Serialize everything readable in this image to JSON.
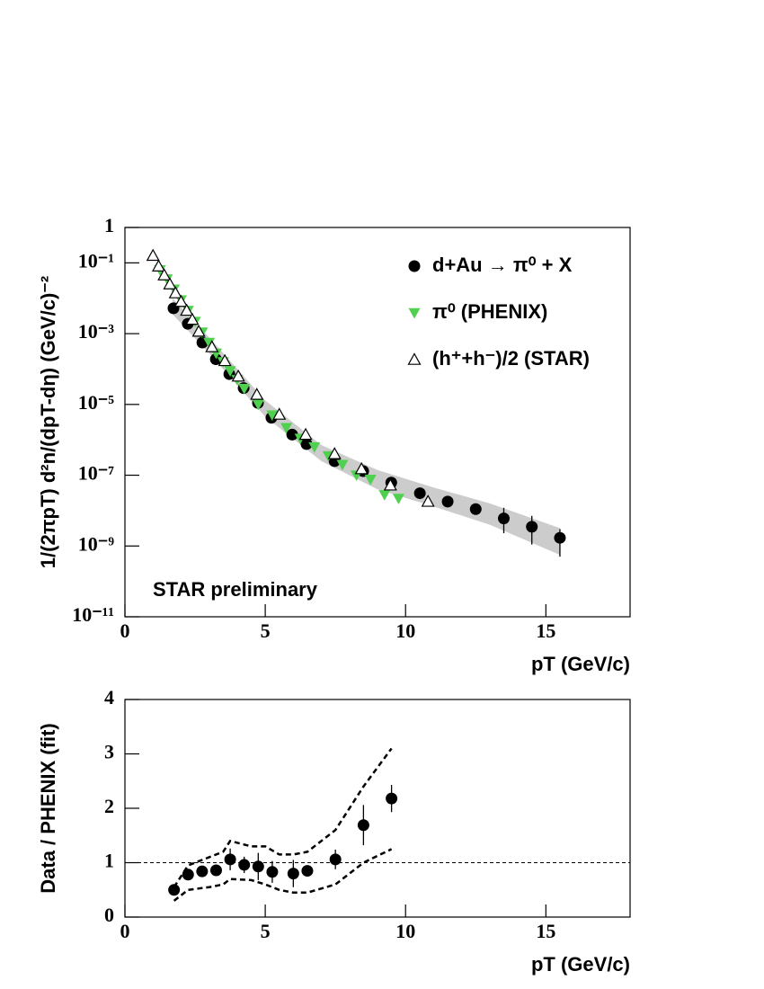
{
  "chart_data": [
    {
      "type": "scatter",
      "yscale": "log",
      "x_label": "pT (GeV/c)",
      "y_label": "1/(2πpT) d²n/(dpT-dη) (GeV/c)⁻²",
      "annotation": "STAR preliminary",
      "xlim": [
        0,
        18
      ],
      "xticks": [
        0,
        5,
        10,
        15
      ],
      "ylim": [
        1e-11,
        1
      ],
      "yticks": [
        1,
        {
          "value": 0.1,
          "label": "10⁻¹"
        },
        {
          "value": 0.001,
          "label": "10⁻³"
        },
        {
          "value": 1e-05,
          "label": "10⁻⁵"
        },
        {
          "value": 1e-07,
          "label": "10⁻⁷"
        },
        {
          "value": 1e-09,
          "label": "10⁻⁹"
        },
        {
          "value": 1e-11,
          "label": "10⁻¹¹"
        }
      ],
      "legend": "top-right",
      "band": {
        "color": "#cccccc",
        "x": [
          1.7,
          3,
          5,
          7,
          9,
          11,
          13,
          15.5
        ],
        "lower": [
          0.0035,
          0.00028,
          4.5e-06,
          2.5e-07,
          4e-08,
          1.3e-08,
          4e-09,
          5.6e-10
        ],
        "upper": [
          0.01,
          0.00079,
          1.3e-05,
          7.1e-07,
          1.4e-07,
          4.5e-08,
          1.6e-08,
          3.2e-09
        ]
      },
      "series": [
        {
          "name": "d+Au → π⁰ + X",
          "color": "#000000",
          "marker": "circle",
          "x": [
            1.73,
            2.24,
            2.76,
            3.24,
            3.72,
            4.23,
            4.74,
            5.22,
            5.96,
            6.47,
            7.47,
            8.49,
            9.49,
            10.51,
            11.5,
            12.5,
            13.5,
            14.5,
            15.5
          ],
          "values": [
            0.0052,
            0.0019,
            0.00056,
            0.00019,
            7.2e-05,
            2.9e-05,
            1.1e-05,
            4.2e-06,
            1.4e-06,
            7.6e-07,
            2.5e-07,
            1.3e-07,
            6.2e-08,
            3.1e-08,
            1.8e-08,
            1.1e-08,
            6e-09,
            3.5e-09,
            1.7e-09
          ],
          "errors_plus": [
            null,
            null,
            null,
            null,
            null,
            null,
            null,
            null,
            null,
            null,
            null,
            null,
            null,
            null,
            null,
            null,
            6e-09,
            3.6e-09,
            1.3e-09
          ],
          "errors_minus": [
            null,
            null,
            null,
            null,
            null,
            null,
            null,
            null,
            null,
            null,
            null,
            null,
            null,
            null,
            null,
            null,
            3.7e-09,
            2.4e-09,
            1.2e-09
          ]
        },
        {
          "name": "π⁰ (PHENIX)",
          "color": "#4fd04f",
          "marker": "triangle-down",
          "x": [
            1.25,
            1.5,
            1.75,
            2.0,
            2.25,
            2.5,
            2.75,
            3.0,
            3.25,
            3.5,
            3.75,
            4.0,
            4.25,
            4.75,
            5.25,
            5.75,
            6.25,
            6.75,
            7.25,
            7.75,
            8.25,
            8.75,
            9.25,
            9.75
          ],
          "values": [
            0.063,
            0.035,
            0.018,
            0.0089,
            0.0045,
            0.0022,
            0.0011,
            0.00056,
            0.00028,
            0.00016,
            8.9e-05,
            5e-05,
            2.8e-05,
            1e-05,
            5e-06,
            2.2e-06,
            1.1e-06,
            6.3e-07,
            3.5e-07,
            2e-07,
            1e-07,
            7.6e-08,
            2.8e-08,
            2.2e-08
          ]
        },
        {
          "name": "(h⁺+h⁻)/2 (STAR)",
          "color": "#000000",
          "marker": "triangle-open",
          "x": [
            1.0,
            1.2,
            1.4,
            1.6,
            1.8,
            2.0,
            2.2,
            2.4,
            2.63,
            3.1,
            3.56,
            4.04,
            4.7,
            5.5,
            6.44,
            7.47,
            8.43,
            9.46,
            10.8
          ],
          "values": [
            0.16,
            0.08,
            0.045,
            0.025,
            0.014,
            0.008,
            0.0045,
            0.0025,
            0.00115,
            0.00042,
            0.00017,
            6.2e-05,
            1.9e-05,
            5.2e-06,
            1.4e-06,
            4e-07,
            1.5e-07,
            5.2e-08,
            1.8e-08
          ]
        }
      ]
    },
    {
      "type": "scatter",
      "x_label": "pT (GeV/c)",
      "y_label": "Data / PHENIX (fit)",
      "xlim": [
        0,
        18
      ],
      "xticks": [
        0,
        5,
        10,
        15
      ],
      "ylim": [
        0,
        4
      ],
      "yticks": [
        0,
        1,
        2,
        3,
        4
      ],
      "reference_line": 1,
      "band_lines": {
        "x": [
          1.75,
          2.25,
          3,
          3.5,
          3.75,
          4.5,
          5,
          5.5,
          6,
          6.5,
          7.5,
          8.5,
          9.5
        ],
        "upper": [
          0.55,
          0.95,
          1.1,
          1.2,
          1.4,
          1.3,
          1.3,
          1.15,
          1.15,
          1.2,
          1.6,
          2.4,
          3.1
        ],
        "lower": [
          0.3,
          0.5,
          0.55,
          0.6,
          0.7,
          0.68,
          0.6,
          0.5,
          0.45,
          0.45,
          0.6,
          1.0,
          1.25
        ]
      },
      "series": [
        {
          "color": "#000000",
          "marker": "circle",
          "x": [
            1.75,
            2.25,
            2.75,
            3.25,
            3.75,
            4.25,
            4.75,
            5.25,
            6.0,
            6.5,
            7.5,
            8.5,
            9.5
          ],
          "values": [
            0.5,
            0.78,
            0.84,
            0.86,
            1.06,
            0.96,
            0.93,
            0.83,
            0.8,
            0.85,
            1.06,
            1.69,
            2.18
          ],
          "errors": [
            0.05,
            0.05,
            0.05,
            0.05,
            0.2,
            0.15,
            0.25,
            0.2,
            0.25,
            0.1,
            0.18,
            0.37,
            0.25
          ]
        }
      ]
    }
  ]
}
